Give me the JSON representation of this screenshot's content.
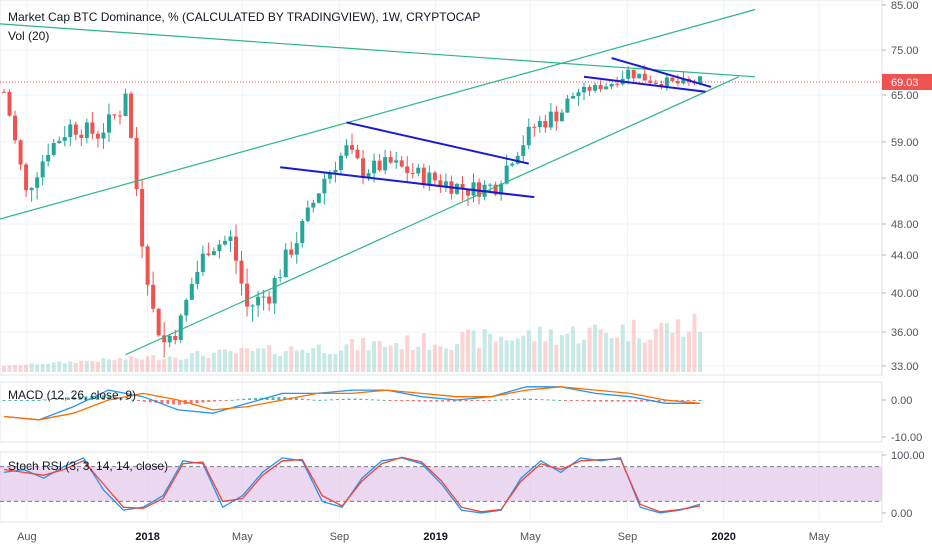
{
  "header": {
    "title": "Market Cap BTC Dominance, % (CALCULATED BY TRADINGVIEW), 1W, CRYPTOCAP",
    "volume": "Vol (20)"
  },
  "colors": {
    "up": "#26a69a",
    "down": "#ef5350",
    "trend_green": "#2bb58a",
    "trend_blue": "#1a1ad6",
    "macd_line": "#2196f3",
    "signal_line": "#ff6d00",
    "stoch_k": "#2196f3",
    "stoch_d": "#f44336",
    "stoch_band": "#e1bee7",
    "last_price_line": "#ef5350"
  },
  "chart_data": [
    {
      "type": "candlestick",
      "title": "Market Cap BTC Dominance, % (CALCULATED BY TRADINGVIEW), 1W, CRYPTOCAP",
      "x_ticks": [
        "Aug",
        "2018",
        "May",
        "Sep",
        "2019",
        "May",
        "Sep",
        "2020",
        "May"
      ],
      "y_ticks": [
        85.0,
        75.0,
        69.03,
        65.0,
        59.0,
        54.0,
        48.0,
        44.0,
        40.0,
        36.0,
        33.0
      ],
      "last_value": 69.03,
      "close_path": [
        [
          "2017-07-03",
          66
        ],
        [
          "2017-07-31",
          52
        ],
        [
          "2017-08-28",
          58
        ],
        [
          "2017-09-25",
          61
        ],
        [
          "2017-10-30",
          60
        ],
        [
          "2017-11-27",
          63
        ],
        [
          "2017-12-04",
          66
        ],
        [
          "2017-12-25",
          46
        ],
        [
          "2018-01-08",
          38
        ],
        [
          "2018-01-22",
          35
        ],
        [
          "2018-02-12",
          37
        ],
        [
          "2018-02-26",
          41
        ],
        [
          "2018-03-19",
          45
        ],
        [
          "2018-04-16",
          46
        ],
        [
          "2018-05-07",
          38.5
        ],
        [
          "2018-06-04",
          40
        ],
        [
          "2018-07-09",
          46
        ],
        [
          "2018-08-13",
          54
        ],
        [
          "2018-09-10",
          58
        ],
        [
          "2018-10-01",
          55
        ],
        [
          "2018-11-05",
          56
        ],
        [
          "2018-11-26",
          55
        ],
        [
          "2018-12-24",
          54
        ],
        [
          "2019-02-11",
          52.5
        ],
        [
          "2019-03-18",
          53
        ],
        [
          "2019-04-08",
          57
        ],
        [
          "2019-05-06",
          61
        ],
        [
          "2019-06-10",
          63
        ],
        [
          "2019-07-01",
          66
        ],
        [
          "2019-08-05",
          68
        ],
        [
          "2019-09-02",
          71
        ],
        [
          "2019-10-07",
          69
        ],
        [
          "2019-11-11",
          68.5
        ],
        [
          "2019-12-02",
          69.03
        ]
      ],
      "trendlines": [
        {
          "kind": "channel-lower",
          "from": [
            "2017-12-04",
            34
          ],
          "to": [
            "2020-01-20",
            70
          ]
        },
        {
          "kind": "channel-upper",
          "from": [
            "2017-06-05",
            48
          ],
          "to": [
            "2020-02-10",
            84
          ]
        },
        {
          "kind": "descending-resistance",
          "from": [
            "2017-06-12",
            81
          ],
          "to": [
            "2020-02-10",
            70
          ]
        },
        {
          "kind": "flag-top",
          "from": [
            "2018-09-10",
            61.5
          ],
          "to": [
            "2019-04-29",
            56
          ]
        },
        {
          "kind": "flag-bottom",
          "from": [
            "2018-06-18",
            55.5
          ],
          "to": [
            "2019-05-06",
            51.5
          ]
        },
        {
          "kind": "pennant-top",
          "from": [
            "2019-08-12",
            73.5
          ],
          "to": [
            "2019-12-16",
            67.5
          ]
        },
        {
          "kind": "pennant-bottom",
          "from": [
            "2019-07-08",
            70
          ],
          "to": [
            "2019-12-09",
            66
          ]
        }
      ]
    },
    {
      "type": "line",
      "title": "MACD (12, 26, close, 9)",
      "y_ticks": [
        0.0,
        -10.0
      ],
      "series": [
        {
          "values": [
            -5,
            -6,
            -2,
            3,
            1,
            -3,
            -4,
            -1,
            2,
            2,
            3,
            3,
            1,
            0,
            1,
            4,
            4,
            2,
            1,
            -1,
            -1
          ]
        },
        {
          "values": [
            -5,
            -6,
            -4,
            0,
            2,
            0,
            -3,
            -2,
            0,
            2,
            2,
            3,
            2,
            1,
            1,
            3,
            4,
            3,
            2,
            0,
            -1
          ]
        }
      ]
    },
    {
      "type": "line",
      "title": "Stoch RSI (3, 3, 14, 14, close)",
      "y_ticks": [
        100.0,
        0.0
      ],
      "band": [
        20,
        80
      ],
      "series": [
        {
          "values": [
            70,
            75,
            60,
            80,
            95,
            40,
            5,
            10,
            30,
            90,
            85,
            10,
            30,
            70,
            95,
            90,
            20,
            10,
            60,
            90,
            95,
            85,
            50,
            5,
            0,
            5,
            60,
            90,
            70,
            95,
            90,
            95,
            10,
            0,
            5,
            15
          ]
        },
        {
          "values": [
            75,
            70,
            65,
            75,
            90,
            50,
            10,
            8,
            25,
            85,
            88,
            20,
            25,
            65,
            90,
            92,
            30,
            12,
            55,
            85,
            96,
            88,
            55,
            10,
            2,
            6,
            55,
            85,
            75,
            90,
            92,
            93,
            15,
            2,
            6,
            12
          ]
        }
      ]
    }
  ]
}
